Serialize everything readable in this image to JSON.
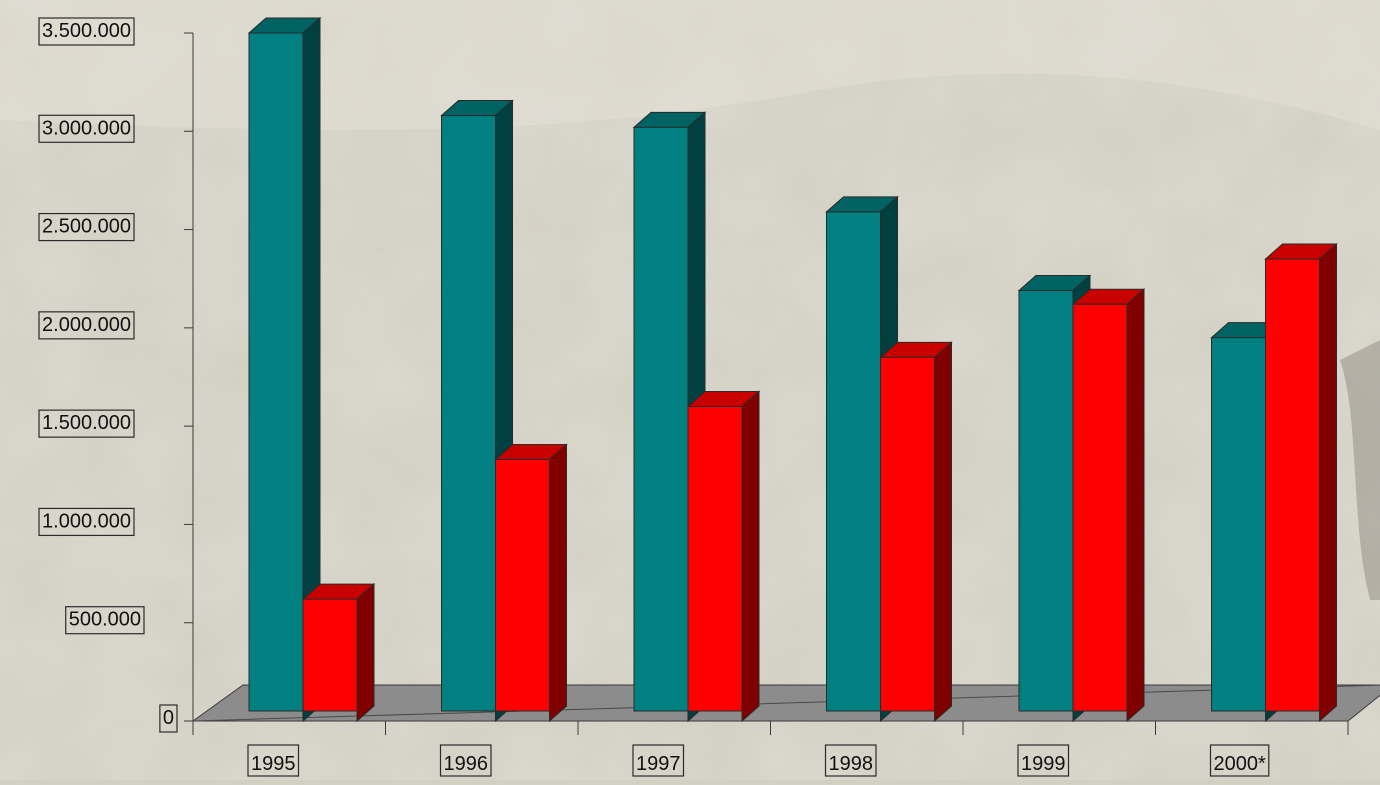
{
  "chart_data": {
    "type": "bar",
    "style": "3d-clustered-column",
    "categories": [
      "1995",
      "1996",
      "1997",
      "1998",
      "1999",
      "2000*"
    ],
    "series": [
      {
        "color": "#008080",
        "values": [
          3500000,
          3080000,
          3020000,
          2590000,
          2190000,
          1950000
        ]
      },
      {
        "color": "#ff0000",
        "values": [
          620000,
          1330000,
          1600000,
          1850000,
          2120000,
          2350000
        ]
      }
    ],
    "y_tick_labels": [
      "0",
      "500.000",
      "1.000.000",
      "1.500.000",
      "2.000.000",
      "2.500.000",
      "3.000.000",
      "3.500.000"
    ],
    "y_ticks": [
      0,
      500000,
      1000000,
      1500000,
      2000000,
      2500000,
      3000000,
      3500000
    ],
    "ylim": [
      0,
      3500000
    ],
    "grid": false,
    "legend": "none",
    "title": "",
    "xlabel": "",
    "ylabel": ""
  },
  "colors": {
    "background": "#d2cfc3",
    "floor": "#8c8c8c",
    "series_a_top": "#006363",
    "series_a_side": "#004040",
    "series_b_top": "#c80000",
    "series_b_side": "#800000"
  }
}
